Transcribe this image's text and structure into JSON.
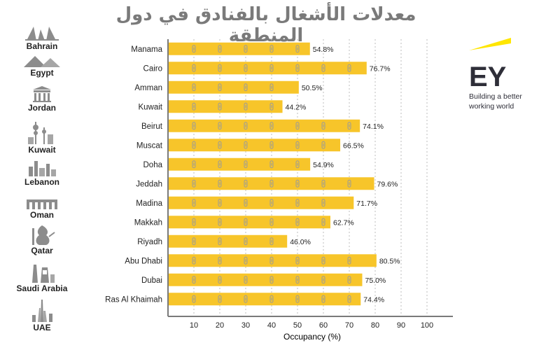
{
  "title": "معدلات الأشغال بالفنادق في دول المنطقة",
  "countries": [
    "Bahrain",
    "Egypt",
    "Jordan",
    "Kuwait",
    "Lebanon",
    "Oman",
    "Qatar",
    "Saudi Arabia",
    "UAE"
  ],
  "logo": {
    "name": "EY",
    "tagline_line1": "Building a better",
    "tagline_line2": "working world"
  },
  "colors": {
    "bar": "#f7c52a",
    "bar_icon": "#9a9a9a",
    "axis": "#7a7a7a",
    "grid": "#bdbdbd",
    "title": "#7a7a7a",
    "ey_yellow": "#ffe600"
  },
  "chart_data": {
    "type": "bar",
    "orientation": "horizontal",
    "categories": [
      "Manama",
      "Cairo",
      "Amman",
      "Kuwait",
      "Beirut",
      "Muscat",
      "Doha",
      "Jeddah",
      "Madina",
      "Makkah",
      "Riyadh",
      "Abu Dhabi",
      "Dubai",
      "Ras Al Khaimah"
    ],
    "values": [
      54.8,
      76.7,
      50.5,
      44.2,
      74.1,
      66.5,
      54.9,
      79.6,
      71.7,
      62.7,
      46.0,
      80.5,
      75.0,
      74.4
    ],
    "value_labels": [
      "54.8%",
      "76.7%",
      "50.5%",
      "44.2%",
      "74.1%",
      "66.5%",
      "54.9%",
      "79.6%",
      "71.7%",
      "62.7%",
      "46.0%",
      "80.5%",
      "75.0%",
      "74.4%"
    ],
    "xlabel": "Occupancy (%)",
    "xlim": [
      0,
      110
    ],
    "xticks": [
      10,
      20,
      30,
      40,
      50,
      60,
      70,
      80,
      90,
      100
    ],
    "grid": true
  }
}
